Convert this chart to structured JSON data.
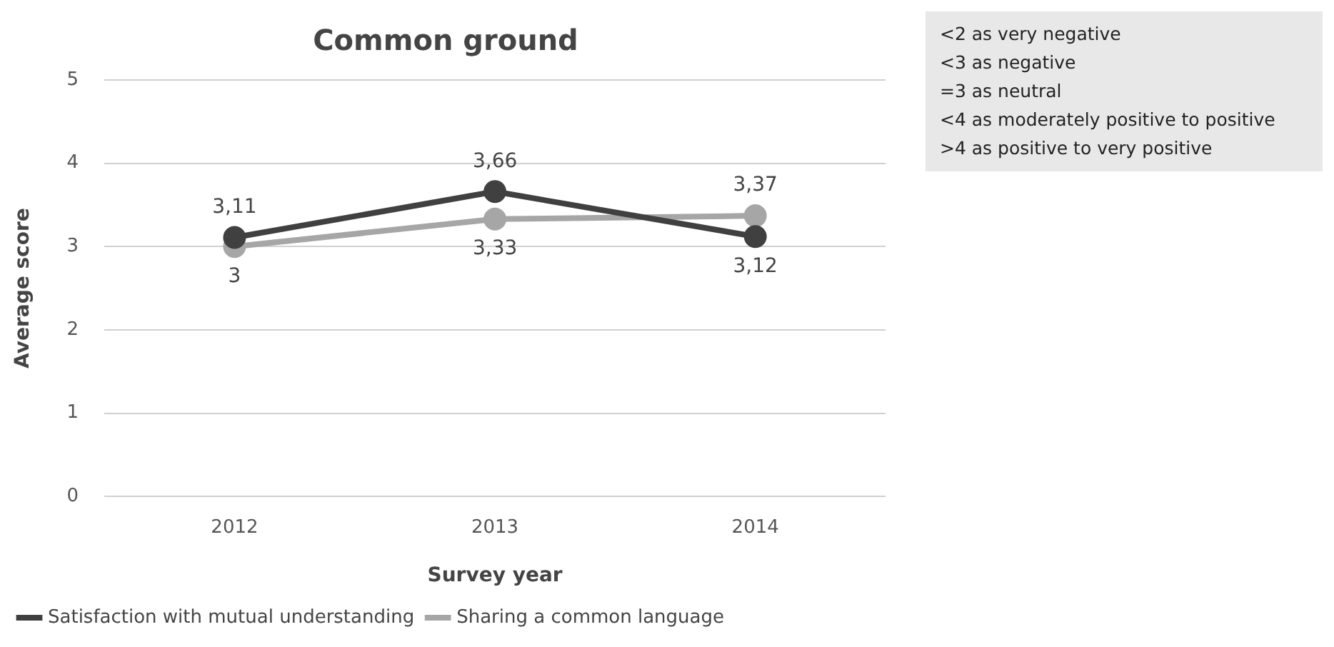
{
  "chart_data": {
    "type": "line",
    "title": "Common ground",
    "xlabel": "Survey year",
    "ylabel": "Average score",
    "categories": [
      "2012",
      "2013",
      "2014"
    ],
    "series": [
      {
        "name": "Satisfaction with mutual understanding",
        "color": "#404040",
        "values": [
          3.11,
          3.66,
          3.12
        ],
        "value_labels": [
          "3,11",
          "3,66",
          "3,12"
        ]
      },
      {
        "name": "Sharing a common language",
        "color": "#a6a6a6",
        "values": [
          3,
          3.33,
          3.37
        ],
        "value_labels": [
          "3",
          "3,33",
          "3,37"
        ]
      }
    ],
    "ylim": [
      0,
      5
    ],
    "yticks": [
      0,
      1,
      2,
      3,
      4,
      5
    ],
    "grid": "y",
    "legend": "bottom",
    "marker": "circle",
    "line_style": "solid",
    "annotations": [
      "<2 as very negative",
      "<3 as negative",
      "=3 as neutral",
      "<4 as moderately positive to positive",
      ">4 as positive to very positive"
    ]
  }
}
